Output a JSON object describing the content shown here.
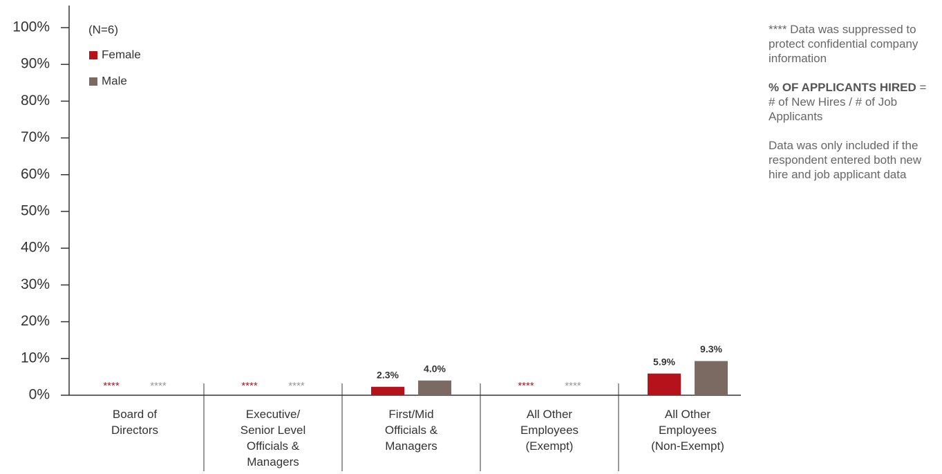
{
  "chart_data": {
    "type": "bar",
    "annotation": "(N=6)",
    "categories": [
      "Board of\nDirectors",
      "Executive/\nSenior Level\nOfficials &\nManagers",
      "First/Mid\nOfficials &\nManagers",
      "All Other\nEmployees\n(Exempt)",
      "All Other\nEmployees\n(Non-Exempt)"
    ],
    "series": [
      {
        "name": "Female",
        "color": "#b5121b",
        "values": [
          null,
          null,
          2.3,
          null,
          5.9
        ],
        "value_labels": [
          "****",
          "****",
          "2.3%",
          "****",
          "5.9%"
        ]
      },
      {
        "name": "Male",
        "color": "#7a6a62",
        "values": [
          null,
          null,
          4.0,
          null,
          9.3
        ],
        "value_labels": [
          "****",
          "****",
          "4.0%",
          "****",
          "9.3%"
        ]
      }
    ],
    "ylim": [
      0,
      100
    ],
    "yticks": [
      {
        "value": 0,
        "label": "0%"
      },
      {
        "value": 10,
        "label": "10%"
      },
      {
        "value": 20,
        "label": "20%"
      },
      {
        "value": 30,
        "label": "30%"
      },
      {
        "value": 40,
        "label": "40%"
      },
      {
        "value": 50,
        "label": "50%"
      },
      {
        "value": 60,
        "label": "60%"
      },
      {
        "value": 70,
        "label": "70%"
      },
      {
        "value": 80,
        "label": "80%"
      },
      {
        "value": 90,
        "label": "90%"
      },
      {
        "value": 100,
        "label": "100%"
      }
    ],
    "legend": "top-left",
    "notes": {
      "suppressed": "**** Data was suppressed to protect confidential company information",
      "definition_term": "% OF APPLICANTS HIRED",
      "definition_text": " = # of New Hires / # of Job Applicants",
      "inclusion": "Data was only included if the respondent entered both new hire and job applicant data"
    }
  }
}
